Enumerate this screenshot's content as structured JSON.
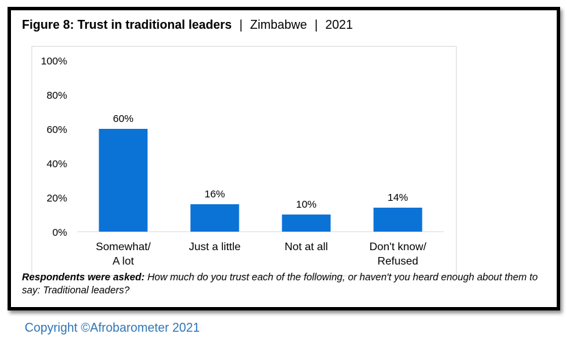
{
  "figure": {
    "title_bold": "Figure 8: Trust in traditional leaders",
    "title_country": "Zimbabwe",
    "title_year": "2021",
    "separator": "|"
  },
  "chart_data": {
    "type": "bar",
    "categories": [
      [
        "Somewhat/",
        "A lot"
      ],
      [
        "Just a little"
      ],
      [
        "Not at all"
      ],
      [
        "Don't know/",
        "Refused"
      ]
    ],
    "values": [
      60,
      16,
      10,
      14
    ],
    "value_labels": [
      "60%",
      "16%",
      "10%",
      "14%"
    ],
    "ylim": [
      0,
      100
    ],
    "yticks": [
      0,
      20,
      40,
      60,
      80,
      100
    ],
    "ytick_labels": [
      "0%",
      "20%",
      "40%",
      "60%",
      "80%",
      "100%"
    ],
    "bar_color": "#0c73d6",
    "grid": false,
    "legend": "none"
  },
  "caption": {
    "lead": "Respondents were asked:",
    "text": "How much do you trust each of the following, or haven't you heard enough about them to say: Traditional leaders?"
  },
  "footer": {
    "copyright": "Copyright ©Afrobarometer 2021"
  },
  "colors": {
    "accent": "#2e75b6",
    "border": "#000000"
  }
}
